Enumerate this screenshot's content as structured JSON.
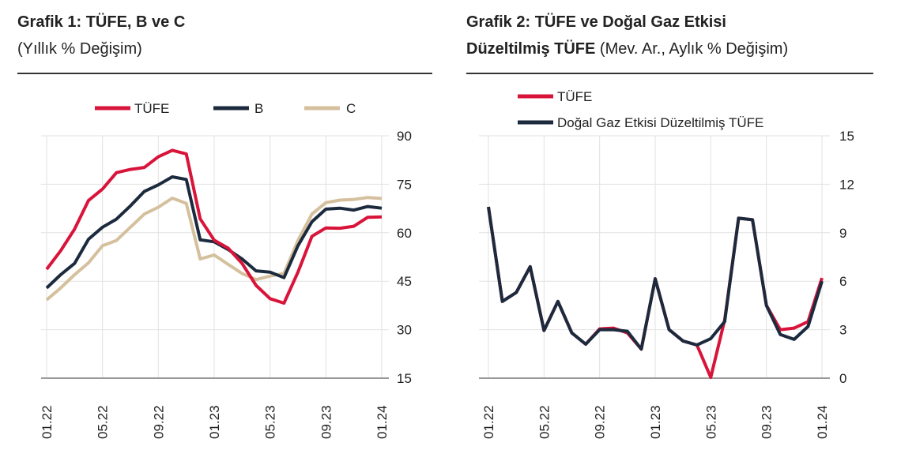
{
  "colors": {
    "tufe": "#d9143a",
    "b": "#1c2a3e",
    "c": "#d5c09e",
    "grid": "#e2e2e2",
    "axis": "#999999"
  },
  "chart_data": [
    {
      "type": "line",
      "title": "Grafik 1: TÜFE, B ve C",
      "subtitle": "(Yıllık % Değişim)",
      "x": [
        "01.22",
        "02.22",
        "03.22",
        "04.22",
        "05.22",
        "06.22",
        "07.22",
        "08.22",
        "09.22",
        "10.22",
        "11.22",
        "12.22",
        "01.23",
        "02.23",
        "03.23",
        "04.23",
        "05.23",
        "06.23",
        "07.23",
        "08.23",
        "09.23",
        "10.23",
        "11.23",
        "12.23",
        "01.24"
      ],
      "xticks": [
        "01.22",
        "05.22",
        "09.22",
        "01.23",
        "05.23",
        "09.23",
        "01.24"
      ],
      "yticks": [
        90,
        75,
        60,
        45,
        30,
        15
      ],
      "ylim": [
        15,
        90
      ],
      "grid": true,
      "legend": "top",
      "series": [
        {
          "name": "TÜFE",
          "color": "tufe",
          "values": [
            48.7,
            54.4,
            61.1,
            70.0,
            73.5,
            78.6,
            79.6,
            80.2,
            83.5,
            85.5,
            84.4,
            64.3,
            57.7,
            55.2,
            50.5,
            43.7,
            39.6,
            38.2,
            47.8,
            58.9,
            61.5,
            61.4,
            62.0,
            64.8,
            64.9
          ]
        },
        {
          "name": "B",
          "color": "b",
          "values": [
            42.9,
            47.0,
            50.5,
            58.0,
            61.7,
            64.2,
            68.3,
            72.8,
            74.8,
            77.3,
            76.5,
            57.8,
            57.2,
            54.8,
            51.9,
            48.2,
            47.8,
            46.1,
            56.0,
            63.4,
            67.3,
            67.6,
            67.0,
            68.1,
            67.6
          ]
        },
        {
          "name": "C",
          "color": "c",
          "values": [
            39.2,
            42.9,
            47.0,
            50.7,
            56.0,
            57.6,
            61.7,
            65.8,
            67.9,
            70.7,
            69.1,
            51.9,
            53.1,
            50.2,
            47.4,
            45.5,
            46.6,
            47.4,
            57.6,
            65.8,
            69.3,
            70.1,
            70.3,
            70.9,
            70.6
          ]
        }
      ]
    },
    {
      "type": "line",
      "title": "Grafik 2: TÜFE ve Doğal Gaz Etkisi",
      "title2": "Düzeltilmiş TÜFE",
      "subtitle": "(Mev. Ar., Aylık % Değişim)",
      "x": [
        "01.22",
        "02.22",
        "03.22",
        "04.22",
        "05.22",
        "06.22",
        "07.22",
        "08.22",
        "09.22",
        "10.22",
        "11.22",
        "12.22",
        "01.23",
        "02.23",
        "03.23",
        "04.23",
        "05.23",
        "06.23",
        "07.23",
        "08.23",
        "09.23",
        "10.23",
        "11.23",
        "12.23",
        "01.24"
      ],
      "xticks": [
        "01.22",
        "05.22",
        "09.22",
        "01.23",
        "05.23",
        "09.23",
        "01.24"
      ],
      "yticks": [
        15,
        12,
        9,
        6,
        3,
        0
      ],
      "ylim": [
        0,
        15
      ],
      "grid": true,
      "legend": "top-left",
      "series": [
        {
          "name": "TÜFE",
          "color": "tufe",
          "values": [
            10.6,
            4.75,
            5.3,
            6.9,
            2.95,
            4.75,
            2.8,
            2.1,
            3.05,
            3.1,
            2.8,
            1.8,
            6.15,
            3.0,
            2.3,
            2.05,
            0.05,
            3.6,
            9.9,
            9.8,
            4.5,
            3.0,
            3.1,
            3.5,
            6.2
          ]
        },
        {
          "name": "Doğal Gaz Etkisi Düzeltilmiş TÜFE",
          "color": "b",
          "values": [
            10.6,
            4.75,
            5.3,
            6.9,
            2.95,
            4.75,
            2.8,
            2.1,
            3.0,
            3.0,
            2.9,
            1.8,
            6.15,
            3.0,
            2.3,
            2.05,
            2.45,
            3.5,
            9.9,
            9.8,
            4.5,
            2.7,
            2.4,
            3.2,
            6.0
          ]
        }
      ]
    }
  ]
}
